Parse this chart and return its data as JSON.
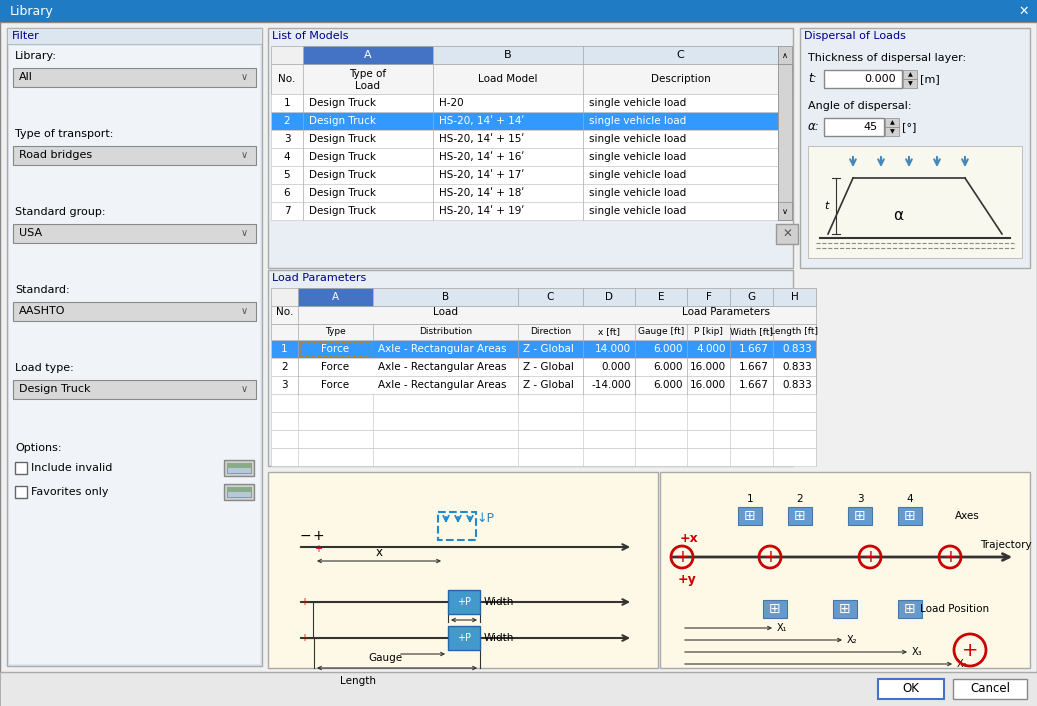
{
  "title": "Library",
  "bg_color": "#f0f0f0",
  "title_bar_color": "#1e7bc4",
  "title_text": "Library",
  "filter": {
    "title": "Filter",
    "labels": [
      "Library:",
      "Type of transport:",
      "Standard group:",
      "Standard:",
      "Load type:"
    ],
    "values": [
      "All",
      "Road bridges",
      "USA",
      "AASHTO",
      "Design Truck"
    ],
    "checkboxes": [
      "Include invalid",
      "Favorites only"
    ]
  },
  "list_models": {
    "title": "List of Models",
    "rows": [
      [
        "1",
        "Design Truck",
        "H-20",
        "single vehicle load"
      ],
      [
        "2",
        "Design Truck",
        "HS-20, 14ʹ + 14ʹ",
        "single vehicle load"
      ],
      [
        "3",
        "Design Truck",
        "HS-20, 14ʹ + 15ʹ",
        "single vehicle load"
      ],
      [
        "4",
        "Design Truck",
        "HS-20, 14ʹ + 16ʹ",
        "single vehicle load"
      ],
      [
        "5",
        "Design Truck",
        "HS-20, 14ʹ + 17ʹ",
        "single vehicle load"
      ],
      [
        "6",
        "Design Truck",
        "HS-20, 14ʹ + 18ʹ",
        "single vehicle load"
      ],
      [
        "7",
        "Design Truck",
        "HS-20, 14ʹ + 19ʹ",
        "single vehicle load"
      ]
    ],
    "selected_row": 1
  },
  "load_params": {
    "title": "Load Parameters",
    "rows": [
      [
        "1",
        "Force",
        "Axle - Rectangular Areas",
        "Z - Global",
        "14.000",
        "6.000",
        "4.000",
        "1.667",
        "0.833"
      ],
      [
        "2",
        "Force",
        "Axle - Rectangular Areas",
        "Z - Global",
        "0.000",
        "6.000",
        "16.000",
        "1.667",
        "0.833"
      ],
      [
        "3",
        "Force",
        "Axle - Rectangular Areas",
        "Z - Global",
        "-14.000",
        "6.000",
        "16.000",
        "1.667",
        "0.833"
      ]
    ],
    "selected_row": 0
  },
  "dispersal": {
    "title": "Dispersal of Loads",
    "t_value": "0.000",
    "alpha_value": "45"
  },
  "colors": {
    "title_bar": "#1e7bc4",
    "header_blue": "#4472c4",
    "selected_blue": "#3399ff",
    "panel_bg": "#e8eef4",
    "filter_bg": "#dce6f1",
    "table_white": "#ffffff",
    "table_gray": "#f0f0f0",
    "dark_text": "#000000",
    "blue_text": "#00008b",
    "diagram_bg": "#fef9e6",
    "cyan": "#4499cc",
    "red": "#cc0000",
    "gray_border": "#aaaaaa",
    "scrollbar": "#c8c8c8",
    "dropdown_bg": "#d8d8d8"
  }
}
